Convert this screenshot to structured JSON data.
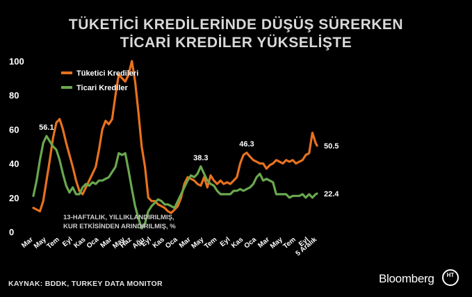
{
  "title_line1": "TÜKETİCİ KREDİLERİNDE DÜŞÜŞ SÜRERKEN",
  "title_line2": "TİCARİ KREDİLER YÜKSELİŞTE",
  "source": "KAYNAK: BDDK, TURKEY DATA MONITOR",
  "brand": "Bloomberg",
  "brand_logo_text": "HT",
  "colors": {
    "consumer": "#e8711e",
    "commercial": "#6aa84f",
    "background": "#000000",
    "text": "#ffffff"
  },
  "chart_data": {
    "type": "line",
    "note": "13-HAFTALIK, YILLIKLANDIRILMIŞ, KUR ETKİSİNDEN ARINDIRILMIŞ, %",
    "ylim": [
      0,
      100
    ],
    "y_ticks": [
      0,
      20,
      40,
      60,
      80,
      100
    ],
    "xlim": [
      0,
      63
    ],
    "x_ticks": [
      {
        "label": "Mar",
        "x": 0
      },
      {
        "label": "May",
        "x": 2
      },
      {
        "label": "Tem",
        "x": 4
      },
      {
        "label": "Eyl",
        "x": 6
      },
      {
        "label": "Kas",
        "x": 8
      },
      {
        "label": "Oca",
        "x": 10
      },
      {
        "label": "Mar",
        "x": 12
      },
      {
        "label": "May",
        "x": 14
      },
      {
        "label": "Haz",
        "x": 15
      },
      {
        "label": "Ağu",
        "x": 17
      },
      {
        "label": "Eyl",
        "x": 18
      },
      {
        "label": "Kas",
        "x": 20
      },
      {
        "label": "Oca",
        "x": 22
      },
      {
        "label": "Mar",
        "x": 24
      },
      {
        "label": "May",
        "x": 26
      },
      {
        "label": "Tem",
        "x": 28
      },
      {
        "label": "Eyl",
        "x": 30
      },
      {
        "label": "Kas",
        "x": 32
      },
      {
        "label": "Oca",
        "x": 34
      },
      {
        "label": "Mar",
        "x": 36
      },
      {
        "label": "May",
        "x": 38
      },
      {
        "label": "Tem",
        "x": 40
      },
      {
        "label": "Eyl",
        "x": 42
      },
      {
        "label": "5 Aralık",
        "x": 43.2
      }
    ],
    "series": [
      {
        "name": "Tüketici Kredileri",
        "color": "#e8711e",
        "points": [
          [
            0,
            14
          ],
          [
            0.5,
            13
          ],
          [
            1,
            12
          ],
          [
            1.5,
            18
          ],
          [
            2,
            30
          ],
          [
            2.5,
            42
          ],
          [
            3,
            55
          ],
          [
            3.5,
            64
          ],
          [
            4,
            66
          ],
          [
            4.5,
            60
          ],
          [
            5,
            52
          ],
          [
            5.5,
            45
          ],
          [
            6,
            38
          ],
          [
            6.5,
            30
          ],
          [
            7,
            24
          ],
          [
            7.5,
            22
          ],
          [
            8,
            26
          ],
          [
            8.5,
            30
          ],
          [
            9,
            34
          ],
          [
            9.5,
            38
          ],
          [
            10,
            48
          ],
          [
            10.5,
            60
          ],
          [
            11,
            65
          ],
          [
            11.5,
            63
          ],
          [
            12,
            66
          ],
          [
            12.5,
            80
          ],
          [
            13,
            92
          ],
          [
            13.5,
            90
          ],
          [
            14,
            88
          ],
          [
            14.5,
            92
          ],
          [
            15,
            100
          ],
          [
            15.5,
            88
          ],
          [
            16,
            70
          ],
          [
            16.5,
            50
          ],
          [
            17,
            38
          ],
          [
            17.5,
            20
          ],
          [
            18,
            18
          ],
          [
            18.5,
            18
          ],
          [
            19,
            16
          ],
          [
            19.5,
            15
          ],
          [
            20,
            14
          ],
          [
            20.5,
            12
          ],
          [
            21,
            11
          ],
          [
            21.5,
            13
          ],
          [
            22,
            15
          ],
          [
            22.5,
            20
          ],
          [
            23,
            28
          ],
          [
            23.5,
            32
          ],
          [
            24,
            31
          ],
          [
            24.5,
            30
          ],
          [
            25,
            28
          ],
          [
            25.5,
            27
          ],
          [
            26,
            32
          ],
          [
            26.5,
            26
          ],
          [
            27,
            33
          ],
          [
            27.5,
            30
          ],
          [
            28,
            28
          ],
          [
            28.5,
            30
          ],
          [
            29,
            28
          ],
          [
            29.5,
            29
          ],
          [
            30,
            28
          ],
          [
            30.5,
            30
          ],
          [
            31,
            32
          ],
          [
            31.5,
            40
          ],
          [
            32,
            45
          ],
          [
            32.5,
            46.3
          ],
          [
            33,
            44
          ],
          [
            33.5,
            42
          ],
          [
            34,
            41
          ],
          [
            34.5,
            40
          ],
          [
            35,
            40
          ],
          [
            35.5,
            37
          ],
          [
            36,
            39
          ],
          [
            36.5,
            40
          ],
          [
            37,
            42
          ],
          [
            37.5,
            41
          ],
          [
            38,
            40
          ],
          [
            38.5,
            42
          ],
          [
            39,
            41
          ],
          [
            39.5,
            42
          ],
          [
            40,
            40
          ],
          [
            40.5,
            41
          ],
          [
            41,
            42
          ],
          [
            41.5,
            45
          ],
          [
            42,
            46
          ],
          [
            42.5,
            58
          ],
          [
            43,
            52
          ],
          [
            43.2,
            50.5
          ]
        ]
      },
      {
        "name": "Ticari Krediler",
        "color": "#6aa84f",
        "points": [
          [
            0,
            21
          ],
          [
            0.5,
            30
          ],
          [
            1,
            42
          ],
          [
            1.5,
            52
          ],
          [
            2,
            56.1
          ],
          [
            2.5,
            53
          ],
          [
            3,
            50
          ],
          [
            3.5,
            48
          ],
          [
            4,
            42
          ],
          [
            4.5,
            34
          ],
          [
            5,
            27
          ],
          [
            5.5,
            23
          ],
          [
            6,
            26
          ],
          [
            6.5,
            22
          ],
          [
            7,
            22
          ],
          [
            7.5,
            26
          ],
          [
            8,
            28
          ],
          [
            8.5,
            27
          ],
          [
            9,
            29
          ],
          [
            9.5,
            28
          ],
          [
            10,
            30
          ],
          [
            10.5,
            30
          ],
          [
            11,
            31
          ],
          [
            11.5,
            32
          ],
          [
            12,
            35
          ],
          [
            12.5,
            38
          ],
          [
            13,
            46
          ],
          [
            13.5,
            45
          ],
          [
            14,
            46
          ],
          [
            14.5,
            36
          ],
          [
            15,
            25
          ],
          [
            15.5,
            15
          ],
          [
            16,
            8
          ],
          [
            16.5,
            2
          ],
          [
            17,
            5
          ],
          [
            17.5,
            12
          ],
          [
            18,
            15
          ],
          [
            18.5,
            17
          ],
          [
            19,
            19
          ],
          [
            19.5,
            18
          ],
          [
            20,
            16
          ],
          [
            20.5,
            16
          ],
          [
            21,
            15
          ],
          [
            21.5,
            14
          ],
          [
            22,
            18
          ],
          [
            22.5,
            22
          ],
          [
            23,
            26
          ],
          [
            23.5,
            30
          ],
          [
            24,
            33
          ],
          [
            24.5,
            32
          ],
          [
            25,
            34
          ],
          [
            25.5,
            38.3
          ],
          [
            26,
            34
          ],
          [
            26.5,
            30
          ],
          [
            27,
            28
          ],
          [
            27.5,
            27
          ],
          [
            28,
            24
          ],
          [
            28.5,
            22
          ],
          [
            29,
            22
          ],
          [
            29.5,
            22
          ],
          [
            30,
            22
          ],
          [
            30.5,
            24
          ],
          [
            31,
            24
          ],
          [
            31.5,
            25
          ],
          [
            32,
            24
          ],
          [
            32.5,
            25
          ],
          [
            33,
            26
          ],
          [
            33.5,
            28
          ],
          [
            34,
            32
          ],
          [
            34.5,
            34
          ],
          [
            35,
            30
          ],
          [
            35.5,
            31
          ],
          [
            36,
            30
          ],
          [
            36.5,
            29
          ],
          [
            37,
            22
          ],
          [
            37.5,
            22
          ],
          [
            38,
            22
          ],
          [
            38.5,
            22
          ],
          [
            39,
            20
          ],
          [
            39.5,
            21
          ],
          [
            40,
            21
          ],
          [
            40.5,
            21
          ],
          [
            41,
            22
          ],
          [
            41.5,
            20
          ],
          [
            42,
            22
          ],
          [
            42.5,
            20
          ],
          [
            43,
            22
          ],
          [
            43.2,
            22.4
          ]
        ]
      }
    ],
    "annotations": [
      {
        "label": "56.1",
        "x": 2,
        "y": 56.1
      },
      {
        "label": "38.3",
        "x": 25.5,
        "y": 38.3
      },
      {
        "label": "46.3",
        "x": 32.5,
        "y": 46.3
      },
      {
        "label": "50.5",
        "x": 43.2,
        "y": 50.5
      },
      {
        "label": "22.4",
        "x": 43.2,
        "y": 22.4
      }
    ],
    "legend": "top-left",
    "grid": false
  }
}
